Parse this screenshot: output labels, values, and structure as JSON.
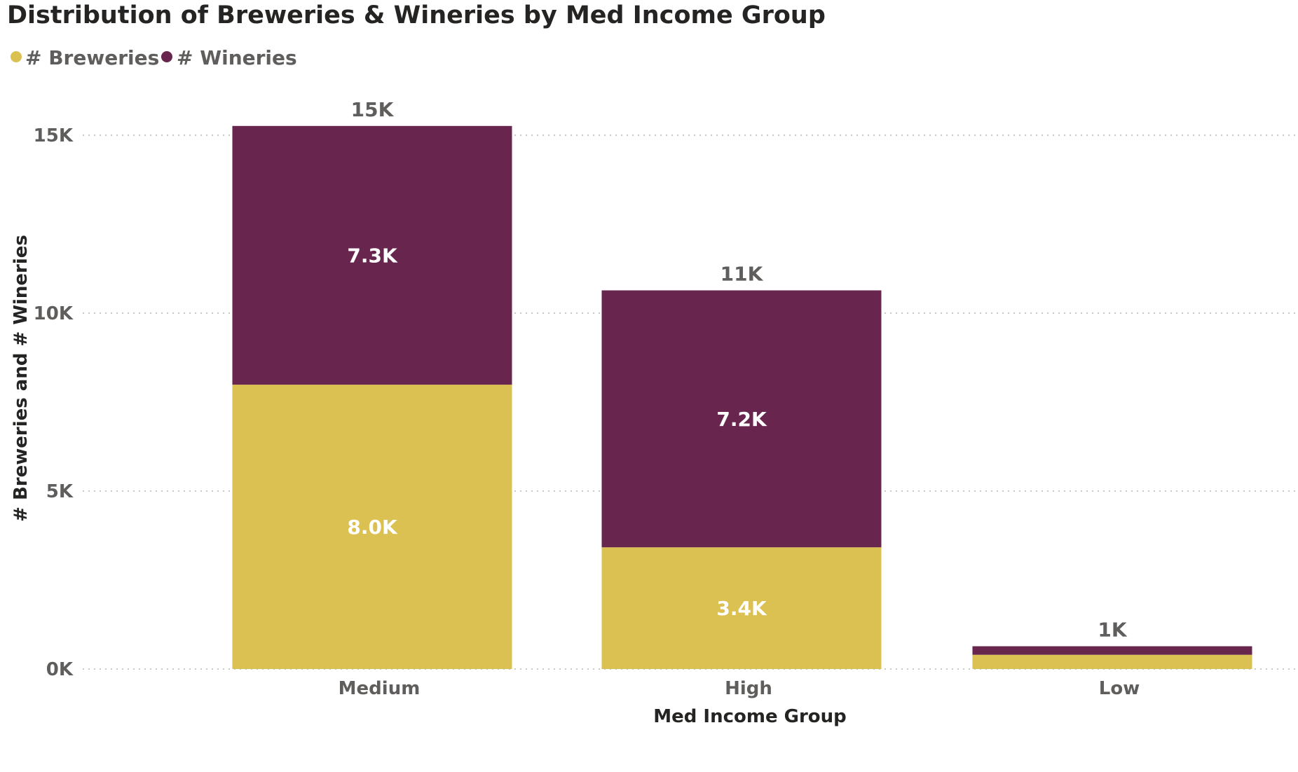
{
  "chart_data": {
    "type": "bar",
    "stacked": true,
    "title": "Distribution of Breweries & Wineries by Med Income Group",
    "xlabel": "Med Income Group",
    "ylabel": "# Breweries and # Wineries",
    "categories": [
      "Medium",
      "High",
      "Low"
    ],
    "series": [
      {
        "name": "# Breweries",
        "color": "#DBC151",
        "values": [
          7990,
          3420,
          400
        ],
        "labels": [
          "8.0K",
          "3.4K",
          ""
        ]
      },
      {
        "name": "# Wineries",
        "color": "#68264F",
        "values": [
          7270,
          7220,
          240
        ],
        "labels": [
          "7.3K",
          "7.2K",
          ""
        ]
      }
    ],
    "totals": [
      "15K",
      "11K",
      "1K"
    ],
    "ylim": [
      0,
      15000
    ],
    "yticks": [
      {
        "value": 0,
        "label": "0K"
      },
      {
        "value": 5000,
        "label": "5K"
      },
      {
        "value": 10000,
        "label": "10K"
      },
      {
        "value": 15000,
        "label": "15K"
      }
    ],
    "grid": true,
    "legend_position": "top-left"
  }
}
